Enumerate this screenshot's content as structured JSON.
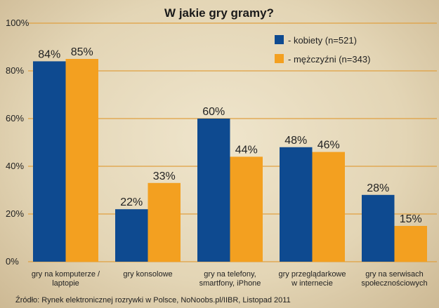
{
  "chart_data": {
    "type": "bar",
    "title": "W jakie gry gramy?",
    "categories": [
      [
        "gry na komputerze /",
        "laptopie"
      ],
      [
        "gry konsolowe"
      ],
      [
        "gry na telefony,",
        "smartfony, iPhone"
      ],
      [
        "gry przeglądarkowe",
        "w internecie"
      ],
      [
        "gry na serwisach",
        "społecznościowych"
      ]
    ],
    "series": [
      {
        "name": "- kobiety (n=521)",
        "color": "#0e4a90",
        "values": [
          84,
          22,
          60,
          48,
          28
        ]
      },
      {
        "name": "- mężczyźni (n=343)",
        "color": "#f3a020",
        "values": [
          85,
          33,
          44,
          46,
          15
        ]
      }
    ],
    "ylim": [
      0,
      100
    ],
    "yticks": [
      "0%",
      "20%",
      "40%",
      "60%",
      "80%",
      "100%"
    ],
    "grid": true,
    "legend_position": "top-right",
    "value_suffix": "%",
    "source": "Źródło: Rynek elektronicznej rozrywki w Polsce, NoNoobs.pl/IIBR,  Listopad 2011"
  }
}
